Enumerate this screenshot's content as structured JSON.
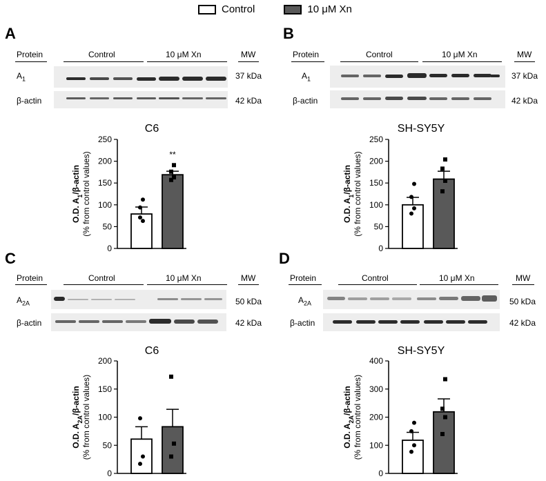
{
  "legend": {
    "control_label": "Control",
    "treatment_label": "10 μM Xn",
    "control_color": "#ffffff",
    "treatment_color": "#595959"
  },
  "blot_common": {
    "protein_header": "Protein",
    "control_header": "Control",
    "treatment_header": "10 μM Xn",
    "mw_header": "MW",
    "beta_actin": "β-actin",
    "beta_actin_mw": "42 kDa"
  },
  "panels": {
    "A": {
      "letter": "A",
      "protein": "A",
      "protein_sub": "1",
      "protein_mw": "37 kDa"
    },
    "B": {
      "letter": "B",
      "protein": "A",
      "protein_sub": "1",
      "protein_mw": "37 kDa"
    },
    "C": {
      "letter": "C",
      "protein": "A",
      "protein_sub": "2A",
      "protein_mw": "50 kDa"
    },
    "D": {
      "letter": "D",
      "protein": "A",
      "protein_sub": "2A",
      "protein_mw": "50 kDa"
    }
  },
  "chart_data": [
    {
      "panel": "A",
      "type": "bar",
      "title": "C6",
      "ylabel_main": "O.D. A",
      "ylabel_sub": "1",
      "ylabel_tail": "/β-actin",
      "ylabel_2": "(% from control values)",
      "ylim": [
        0,
        250
      ],
      "yticks": [
        0,
        50,
        100,
        150,
        200,
        250
      ],
      "categories": [
        "Control",
        "10 μM Xn"
      ],
      "values": [
        79,
        169
      ],
      "sem": [
        16,
        8
      ],
      "points": [
        [
          71,
          63,
          94,
          112
        ],
        [
          157,
          163,
          176,
          191
        ]
      ],
      "annotation": "**"
    },
    {
      "panel": "B",
      "type": "bar",
      "title": "SH-SY5Y",
      "ylabel_main": "O.D. A",
      "ylabel_sub": "1",
      "ylabel_tail": "/β-actin",
      "ylabel_2": "(% from control values)",
      "ylim": [
        0,
        250
      ],
      "yticks": [
        0,
        50,
        100,
        150,
        200,
        250
      ],
      "categories": [
        "Control",
        "10 μM Xn"
      ],
      "values": [
        100,
        159
      ],
      "sem": [
        17,
        18
      ],
      "points": [
        [
          80,
          92,
          118,
          148
        ],
        [
          131,
          155,
          183,
          204
        ]
      ],
      "annotation": ""
    },
    {
      "panel": "C",
      "type": "bar",
      "title": "C6",
      "ylabel_main": "O.D. A",
      "ylabel_sub": "2A",
      "ylabel_tail": "/β-actin",
      "ylabel_2": "(% from control values)",
      "ylim": [
        0,
        200
      ],
      "yticks": [
        0,
        50,
        100,
        150,
        200
      ],
      "categories": [
        "Control",
        "10 μM Xn"
      ],
      "values": [
        61,
        83
      ],
      "sem": [
        22,
        31
      ],
      "points": [
        [
          17,
          30,
          98
        ],
        [
          30,
          53,
          172
        ]
      ],
      "annotation": ""
    },
    {
      "panel": "D",
      "type": "bar",
      "title": "SH-SY5Y",
      "ylabel_main": "O.D. A",
      "ylabel_sub": "2A",
      "ylabel_tail": "/β-actin",
      "ylabel_2": "(% from control values)",
      "ylim": [
        0,
        400
      ],
      "yticks": [
        0,
        100,
        200,
        300,
        400
      ],
      "categories": [
        "Control",
        "10 μM Xn"
      ],
      "values": [
        118,
        219
      ],
      "sem": [
        28,
        46
      ],
      "points": [
        [
          77,
          100,
          150,
          180
        ],
        [
          140,
          200,
          230,
          335
        ]
      ],
      "annotation": ""
    }
  ]
}
